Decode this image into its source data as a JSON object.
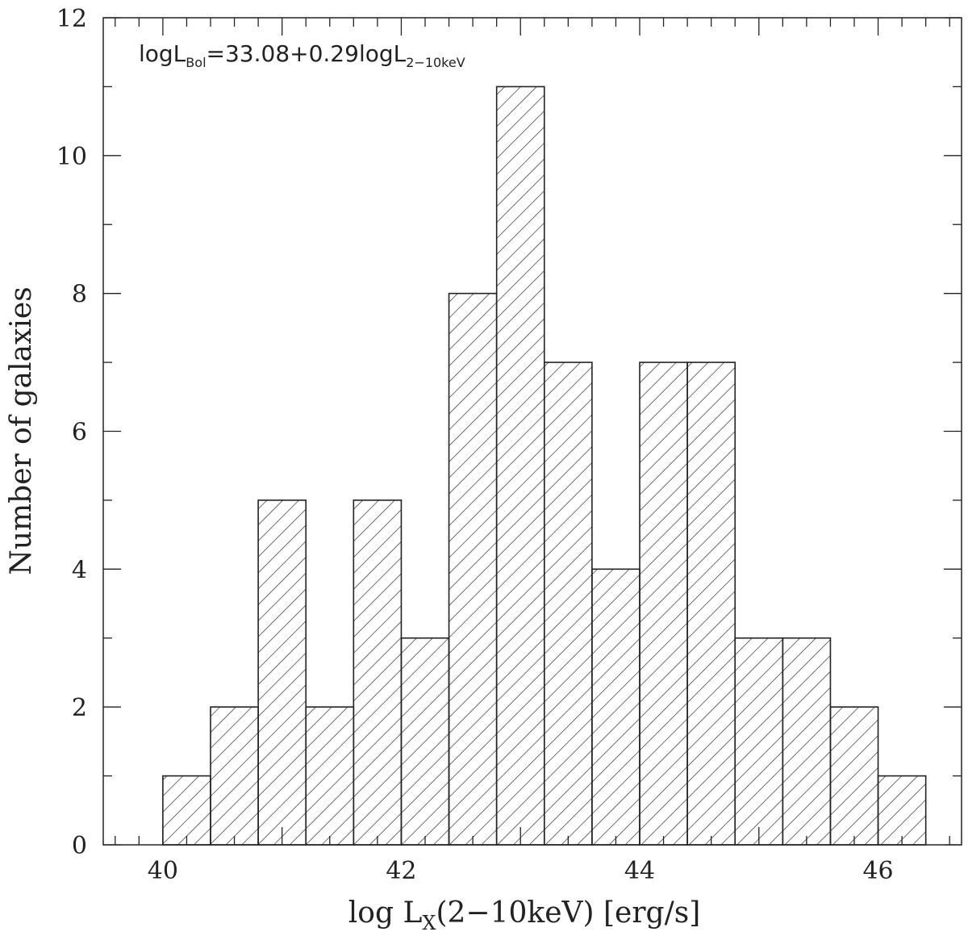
{
  "chart_data": {
    "type": "bar",
    "subtype": "histogram",
    "hatched": true,
    "bin_edges": [
      40.0,
      40.4,
      40.8,
      41.2,
      41.6,
      42.0,
      42.4,
      42.8,
      43.2,
      43.6,
      44.0,
      44.4,
      44.8,
      45.2,
      45.6,
      46.0,
      46.4
    ],
    "values": [
      1,
      2,
      5,
      2,
      5,
      3,
      8,
      11,
      7,
      4,
      7,
      7,
      3,
      3,
      2,
      1
    ],
    "xlim": [
      39.5,
      46.7
    ],
    "ylim": [
      0,
      12
    ],
    "x_ticks": [
      "40",
      "42",
      "44",
      "46"
    ],
    "y_ticks": [
      "0",
      "2",
      "4",
      "6",
      "8",
      "10",
      "12"
    ],
    "xlabel": {
      "prefix": "log L",
      "sub": "X",
      "suffix": "(2−10keV) [erg/s]"
    },
    "ylabel": "Number of galaxies",
    "annotation": {
      "part1": "logL",
      "sub1": "Bol",
      "part2": "=33.08+0.29logL",
      "sub2": "2−10keV"
    }
  }
}
